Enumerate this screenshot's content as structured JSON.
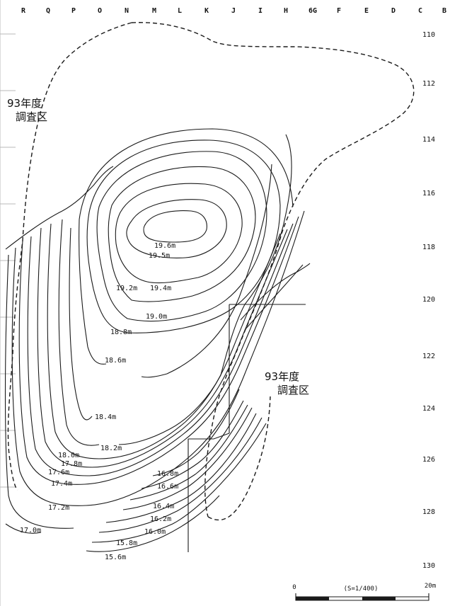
{
  "grid": {
    "columns": [
      "R",
      "Q",
      "P",
      "O",
      "N",
      "M",
      "L",
      "K",
      "J",
      "I",
      "H",
      "6G",
      "F",
      "E",
      "D",
      "C",
      "B"
    ],
    "rows": [
      "110",
      "112",
      "114",
      "116",
      "118",
      "120",
      "122",
      "124",
      "126",
      "128",
      "130"
    ]
  },
  "areas": [
    {
      "line1": "93年度",
      "line2": "調査区"
    },
    {
      "line1": "93年度",
      "line2": "調査区"
    }
  ],
  "elevations": [
    "19.6m",
    "19.5m",
    "19.4m",
    "19.2m",
    "19.0m",
    "18.8m",
    "18.6m",
    "18.4m",
    "18.2m",
    "18.0m",
    "17.8m",
    "17.6m",
    "17.4m",
    "17.2m",
    "17.0m",
    "16.8m",
    "16.6m",
    "16.4m",
    "16.2m",
    "16.0m",
    "15.8m",
    "15.6m"
  ],
  "scale": {
    "start": "0",
    "ratio": "(S=1/400)",
    "end": "20m"
  },
  "colors": {
    "line": "#1a1a1a",
    "paper": "#ffffff"
  }
}
